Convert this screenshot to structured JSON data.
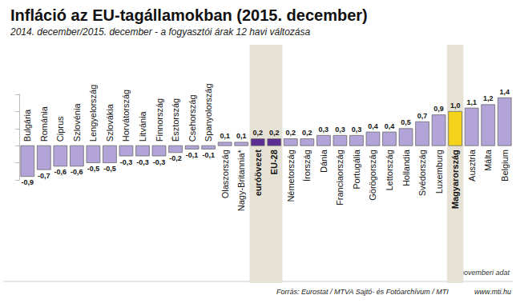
{
  "chart_data": {
    "type": "bar",
    "title": "Infláció az EU-tagállamokban (2015. december)",
    "subtitle": "2014. december/2015. december - a fogyasztói árak 12 havi változása",
    "categories": [
      "Bulgária",
      "Románia",
      "Ciprus",
      "Szlovénia",
      "Lengyelország",
      "Szlovákia",
      "Horvátország",
      "Litvánia",
      "Finnország",
      "Észtország",
      "Csehország",
      "Spanyolország",
      "Olaszország",
      "Nagy-Britannia*",
      "euróövezet",
      "EU-28",
      "Németország",
      "Írország",
      "Dánia",
      "Franciaország",
      "Portugália",
      "Görögország",
      "Lettország",
      "Hollandia",
      "Svédország",
      "Luxemburg",
      "Magyarország",
      "Ausztria",
      "Málta",
      "Belgium"
    ],
    "values": [
      -0.9,
      -0.7,
      -0.6,
      -0.6,
      -0.5,
      -0.5,
      -0.3,
      -0.3,
      -0.3,
      -0.2,
      -0.1,
      -0.1,
      0.1,
      0.1,
      0.2,
      0.2,
      0.2,
      0.2,
      0.3,
      0.3,
      0.3,
      0.4,
      0.4,
      0.5,
      0.7,
      0.9,
      1.0,
      1.1,
      1.2,
      1.4
    ],
    "value_labels": [
      "-0,9",
      "-0,7",
      "-0,6",
      "-0,6",
      "-0,5",
      "-0,5",
      "-0,3",
      "-0,3",
      "-0,3",
      "-0,2",
      "-0,1",
      "-0,1",
      "0,1",
      "0,1",
      "0,2",
      "0,2",
      "0,2",
      "0,2",
      "0,3",
      "0,3",
      "0,3",
      "0,4",
      "0,4",
      "0,5",
      "0,7",
      "0,9",
      "1,0",
      "1,1",
      "1,2",
      "1,4"
    ],
    "color": "#b2a4d8",
    "colors": [
      "#b2a4d8",
      "#b2a4d8",
      "#b2a4d8",
      "#b2a4d8",
      "#b2a4d8",
      "#b2a4d8",
      "#b2a4d8",
      "#b2a4d8",
      "#b2a4d8",
      "#b2a4d8",
      "#b2a4d8",
      "#b2a4d8",
      "#b2a4d8",
      "#b2a4d8",
      "#5c2e91",
      "#5c2e91",
      "#b2a4d8",
      "#b2a4d8",
      "#b2a4d8",
      "#b2a4d8",
      "#b2a4d8",
      "#b2a4d8",
      "#b2a4d8",
      "#b2a4d8",
      "#b2a4d8",
      "#b2a4d8",
      "#f6d31b",
      "#b2a4d8",
      "#b2a4d8",
      "#b2a4d8"
    ],
    "ylim": [
      -1,
      1.5
    ],
    "yticks": [
      -1,
      -0.5,
      0,
      0.5,
      1,
      1.5
    ],
    "grid": false,
    "data_labels": true,
    "tick_labels": false,
    "annotations": {
      "note": "*novemberi adat",
      "source": "Forrás: Eurostat / MTVA Sajtó- és Fotóarchívum / MTI",
      "website": "www.mti.hu"
    }
  }
}
